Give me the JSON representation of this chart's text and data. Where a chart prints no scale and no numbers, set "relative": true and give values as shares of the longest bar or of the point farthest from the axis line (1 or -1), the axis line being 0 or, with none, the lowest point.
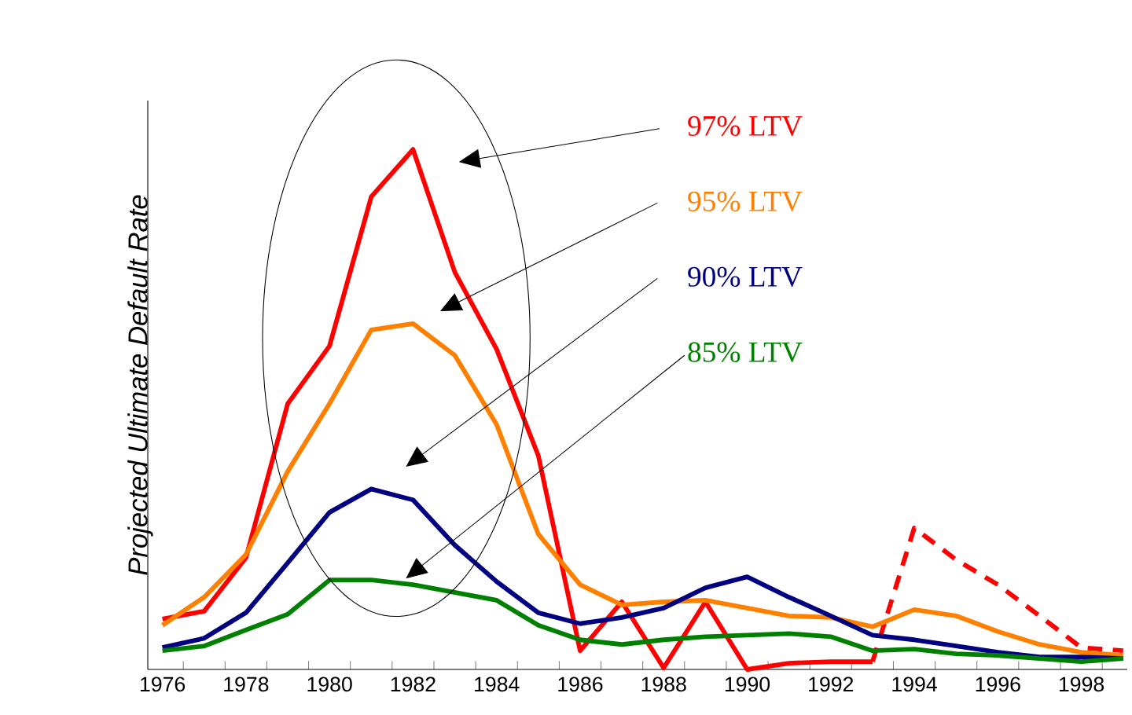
{
  "chart_data": {
    "type": "line",
    "ylabel": "Projected Ultimate Default Rate",
    "relative": true,
    "marker": "none",
    "legend": false,
    "grid": false,
    "categories": [
      "1976",
      null,
      "1978",
      null,
      "1980",
      null,
      "1982",
      null,
      "1984",
      null,
      "1986",
      null,
      "1988",
      null,
      "1990",
      null,
      "1992",
      null,
      "1994",
      null,
      "1996",
      null,
      "1998",
      null
    ],
    "series": [
      {
        "name": "97% LTV",
        "color": "#ff0000",
        "line_style": "solid",
        "values": [
          0.097,
          0.112,
          0.215,
          0.511,
          0.622,
          0.909,
          1,
          0.764,
          0.616,
          0.411,
          0.036,
          0.13,
          0.003,
          0.13,
          0,
          0.012,
          0.015,
          0.015,
          null,
          null,
          null,
          null,
          null,
          null
        ]
      },
      {
        "color": "#ff0000",
        "line_style": "dashed",
        "values": [
          null,
          null,
          null,
          null,
          null,
          null,
          null,
          null,
          null,
          null,
          null,
          null,
          null,
          null,
          null,
          null,
          null,
          0.015,
          0.272,
          0.211,
          0.163,
          0.103,
          0.042,
          0.036
        ]
      },
      {
        "name": "95% LTV",
        "color": "#ff7f00",
        "line_style": "solid",
        "values": [
          0.085,
          0.139,
          0.221,
          0.381,
          0.511,
          0.653,
          0.665,
          0.604,
          0.471,
          0.26,
          0.163,
          0.124,
          0.13,
          0.133,
          0.118,
          0.103,
          0.1,
          0.082,
          0.115,
          0.103,
          0.073,
          0.048,
          0.033,
          0.027
        ]
      },
      {
        "name": "90% LTV",
        "color": "#000080",
        "line_style": "solid",
        "values": [
          0.042,
          0.06,
          0.109,
          0.205,
          0.302,
          0.347,
          0.326,
          0.239,
          0.169,
          0.109,
          0.088,
          0.1,
          0.118,
          0.157,
          0.178,
          0.139,
          0.103,
          0.066,
          0.057,
          0.045,
          0.033,
          0.024,
          0.024,
          0.021
        ]
      },
      {
        "name": "85% LTV",
        "color": "#008000",
        "line_style": "solid",
        "values": [
          0.036,
          0.045,
          0.076,
          0.106,
          0.172,
          0.172,
          0.163,
          0.148,
          0.133,
          0.085,
          0.057,
          0.048,
          0.057,
          0.063,
          0.066,
          0.069,
          0.063,
          0.036,
          0.039,
          0.03,
          0.027,
          0.021,
          0.015,
          0.021
        ]
      }
    ]
  }
}
